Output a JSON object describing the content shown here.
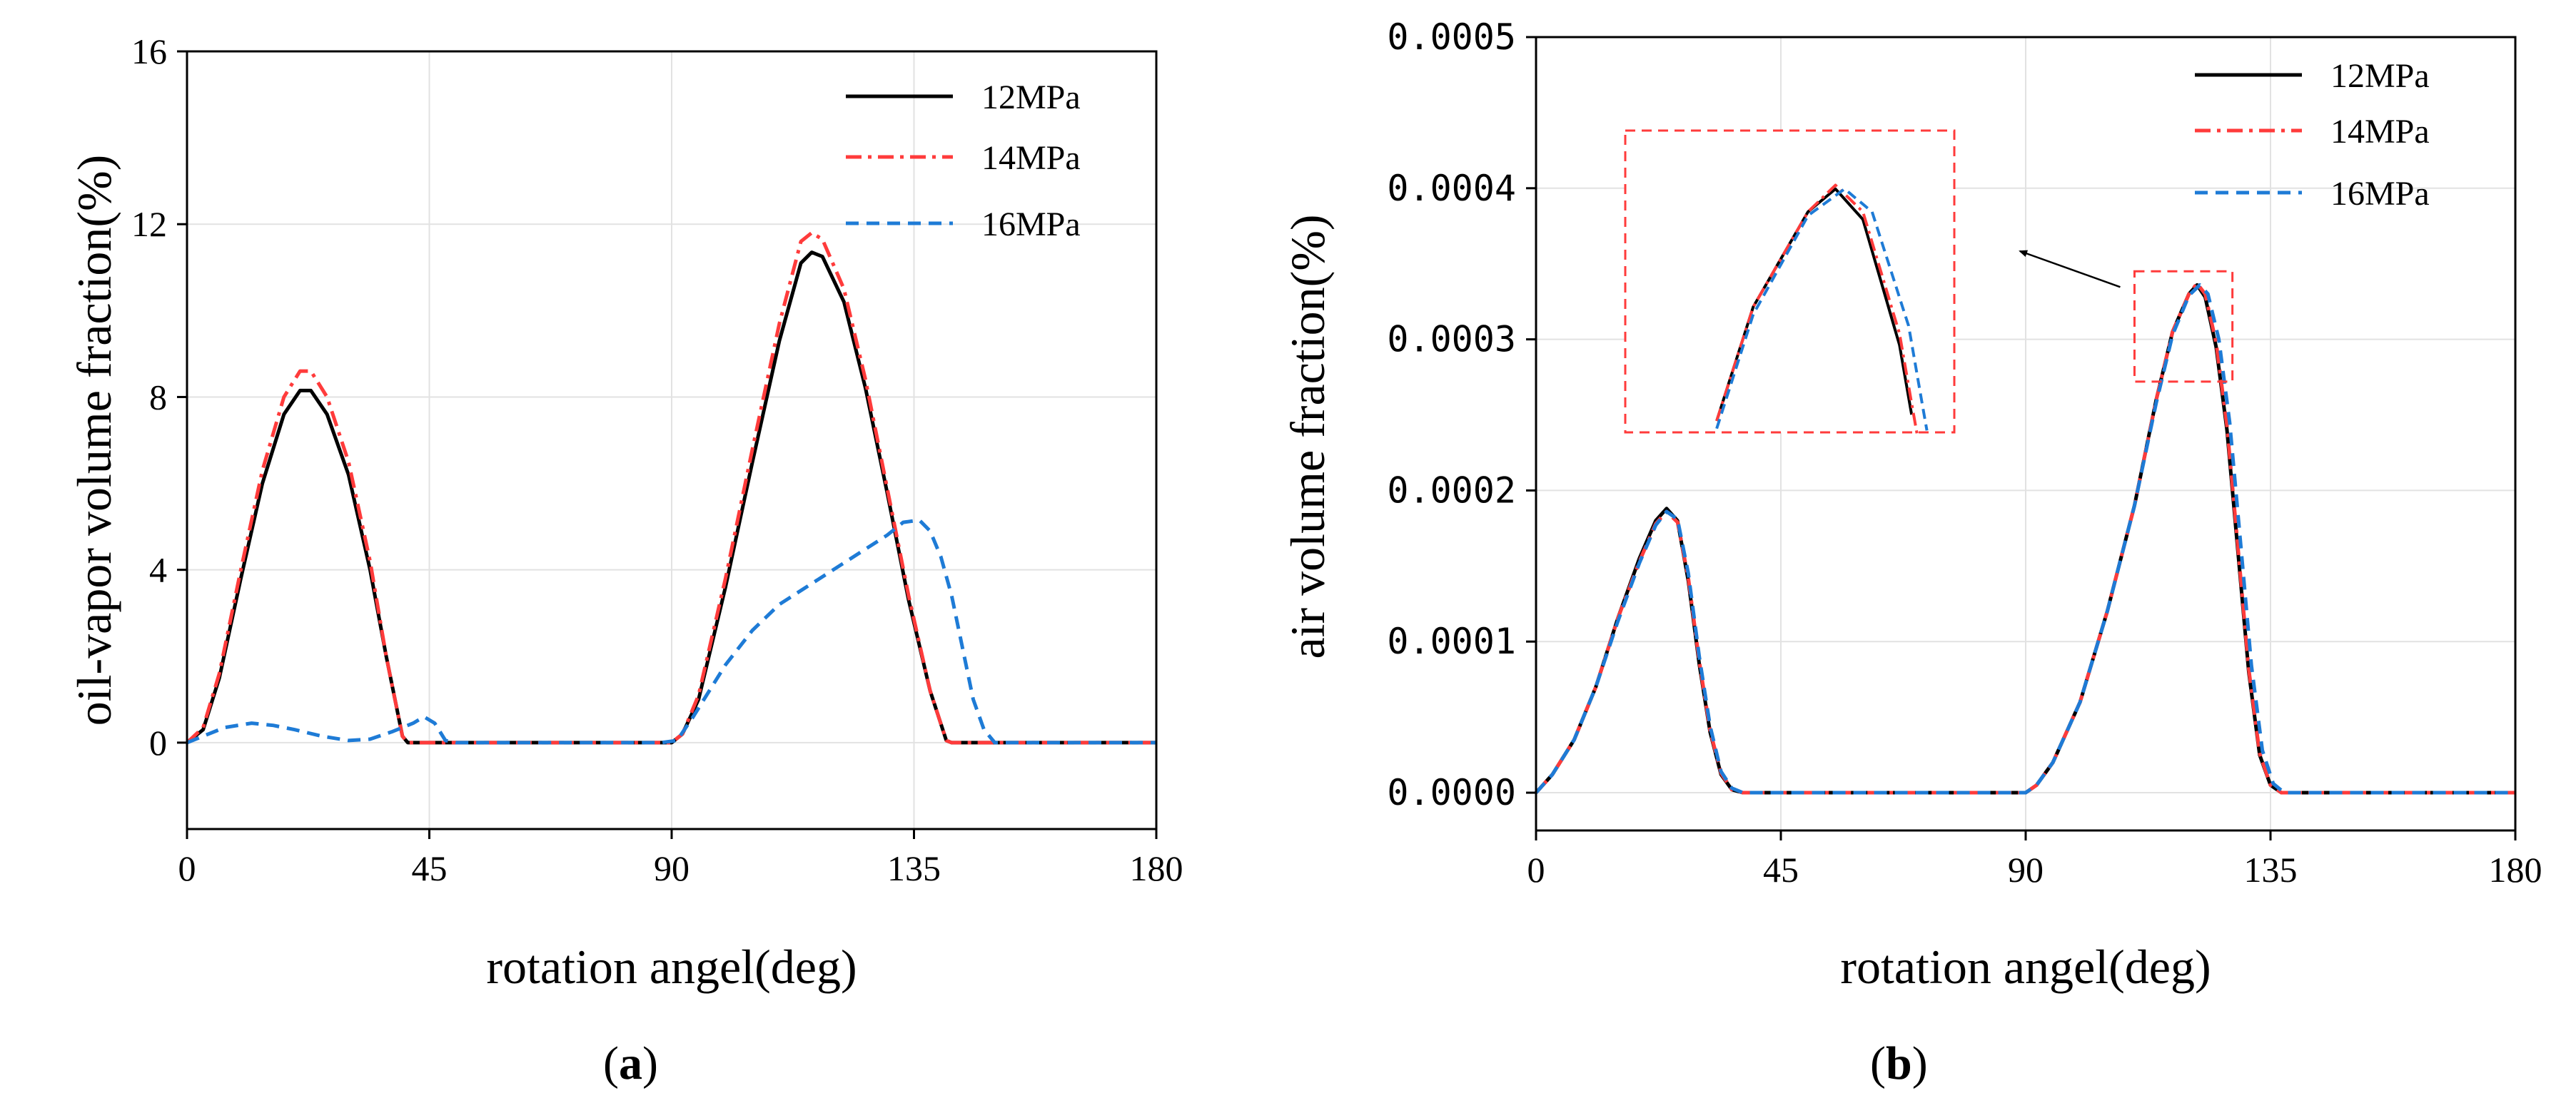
{
  "chart_data": [
    {
      "type": "line",
      "panel_label": {
        "open": "(",
        "letter": "a",
        "close": ")"
      },
      "xlabel": "rotation angel(deg)",
      "ylabel": "oil-vapor volume fraction(%)",
      "xlim": [
        0,
        180
      ],
      "ylim": [
        -2,
        16
      ],
      "xticks": [
        "0",
        "45",
        "90",
        "135",
        "180"
      ],
      "yticks": [
        "0",
        "4",
        "8",
        "12",
        "16"
      ],
      "grid": true,
      "legend_position": "top-right",
      "series": [
        {
          "name": "12MPa",
          "color": "#000000",
          "dash": "solid",
          "points": [
            [
              0,
              0
            ],
            [
              3,
              0.3
            ],
            [
              6,
              1.5
            ],
            [
              10,
              3.8
            ],
            [
              14,
              6.0
            ],
            [
              18,
              7.6
            ],
            [
              21,
              8.15
            ],
            [
              23,
              8.15
            ],
            [
              26,
              7.6
            ],
            [
              30,
              6.2
            ],
            [
              34,
              4.0
            ],
            [
              37,
              2.0
            ],
            [
              40,
              0.15
            ],
            [
              41,
              0
            ],
            [
              60,
              0
            ],
            [
              80,
              0
            ],
            [
              90,
              0
            ],
            [
              92,
              0.2
            ],
            [
              95,
              1.0
            ],
            [
              100,
              3.6
            ],
            [
              105,
              6.5
            ],
            [
              110,
              9.3
            ],
            [
              114,
              11.1
            ],
            [
              116,
              11.35
            ],
            [
              118,
              11.25
            ],
            [
              122,
              10.2
            ],
            [
              126,
              8.2
            ],
            [
              130,
              5.8
            ],
            [
              134,
              3.3
            ],
            [
              138,
              1.2
            ],
            [
              141,
              0.05
            ],
            [
              142,
              0
            ],
            [
              160,
              0
            ],
            [
              180,
              0
            ]
          ]
        },
        {
          "name": "14MPa",
          "color": "#ff3b3b",
          "dash": "dashdot",
          "points": [
            [
              0,
              0
            ],
            [
              3,
              0.35
            ],
            [
              6,
              1.6
            ],
            [
              10,
              4.0
            ],
            [
              14,
              6.3
            ],
            [
              18,
              8.0
            ],
            [
              21,
              8.6
            ],
            [
              23,
              8.6
            ],
            [
              26,
              8.0
            ],
            [
              30,
              6.5
            ],
            [
              34,
              4.2
            ],
            [
              37,
              2.0
            ],
            [
              40,
              0.15
            ],
            [
              41,
              0
            ],
            [
              60,
              0
            ],
            [
              80,
              0
            ],
            [
              90,
              0
            ],
            [
              92,
              0.2
            ],
            [
              95,
              1.1
            ],
            [
              100,
              3.8
            ],
            [
              105,
              6.8
            ],
            [
              110,
              9.7
            ],
            [
              114,
              11.6
            ],
            [
              116,
              11.8
            ],
            [
              118,
              11.65
            ],
            [
              122,
              10.5
            ],
            [
              126,
              8.4
            ],
            [
              130,
              5.9
            ],
            [
              134,
              3.4
            ],
            [
              138,
              1.2
            ],
            [
              141,
              0.05
            ],
            [
              142,
              0
            ],
            [
              160,
              0
            ],
            [
              180,
              0
            ]
          ]
        },
        {
          "name": "16MPa",
          "color": "#1e7bd6",
          "dash": "dashed",
          "points": [
            [
              0,
              0
            ],
            [
              3,
              0.15
            ],
            [
              7,
              0.35
            ],
            [
              12,
              0.45
            ],
            [
              16,
              0.4
            ],
            [
              20,
              0.3
            ],
            [
              25,
              0.15
            ],
            [
              30,
              0.05
            ],
            [
              34,
              0.08
            ],
            [
              38,
              0.25
            ],
            [
              42,
              0.45
            ],
            [
              44,
              0.6
            ],
            [
              46,
              0.45
            ],
            [
              48,
              0.05
            ],
            [
              50,
              0
            ],
            [
              70,
              0
            ],
            [
              88,
              0
            ],
            [
              91,
              0.05
            ],
            [
              94,
              0.6
            ],
            [
              97,
              1.2
            ],
            [
              100,
              1.8
            ],
            [
              105,
              2.6
            ],
            [
              110,
              3.2
            ],
            [
              115,
              3.6
            ],
            [
              120,
              4.0
            ],
            [
              125,
              4.4
            ],
            [
              130,
              4.8
            ],
            [
              133,
              5.1
            ],
            [
              136,
              5.15
            ],
            [
              138,
              4.9
            ],
            [
              140,
              4.3
            ],
            [
              142,
              3.4
            ],
            [
              144,
              2.2
            ],
            [
              146,
              1.0
            ],
            [
              148,
              0.3
            ],
            [
              150,
              0
            ],
            [
              160,
              0
            ],
            [
              180,
              0
            ]
          ]
        }
      ]
    },
    {
      "type": "line",
      "panel_label": {
        "open": "(",
        "letter": "b",
        "close": ")"
      },
      "xlabel": "rotation angel(deg)",
      "ylabel": "air volume fraction(%)",
      "xlim": [
        0,
        180
      ],
      "ylim": [
        -2.5e-05,
        0.0005
      ],
      "xticks": [
        "0",
        "45",
        "90",
        "135",
        "180"
      ],
      "yticks": [
        "0.0000",
        "0.0001",
        "0.0002",
        "0.0003",
        "0.0004",
        "0.0005"
      ],
      "grid": true,
      "legend_position": "top-right",
      "inset": {
        "source_xlim": [
          110,
          128
        ],
        "source_ylim": [
          0.000272,
          0.000345
        ],
        "arrow": true
      },
      "series": [
        {
          "name": "12MPa",
          "color": "#000000",
          "dash": "solid",
          "points": [
            [
              0,
              0
            ],
            [
              3,
              1.2e-05
            ],
            [
              7,
              3.5e-05
            ],
            [
              11,
              7e-05
            ],
            [
              15,
              0.000115
            ],
            [
              19,
              0.000155
            ],
            [
              22,
              0.00018
            ],
            [
              24,
              0.000188
            ],
            [
              26,
              0.00018
            ],
            [
              28,
              0.00014
            ],
            [
              30,
              8.5e-05
            ],
            [
              32,
              4e-05
            ],
            [
              34,
              1.2e-05
            ],
            [
              36,
              2e-06
            ],
            [
              38,
              0
            ],
            [
              50,
              0
            ],
            [
              70,
              0
            ],
            [
              90,
              0
            ],
            [
              92,
              5e-06
            ],
            [
              95,
              2e-05
            ],
            [
              100,
              6e-05
            ],
            [
              105,
              0.00012
            ],
            [
              110,
              0.00019
            ],
            [
              114,
              0.00026
            ],
            [
              117,
              0.000305
            ],
            [
              120,
              0.00033
            ],
            [
              121.5,
              0.000336
            ],
            [
              123,
              0.000328
            ],
            [
              125,
              0.000295
            ],
            [
              127,
              0.00024
            ],
            [
              129,
              0.00016
            ],
            [
              131,
              8e-05
            ],
            [
              133,
              2.5e-05
            ],
            [
              135,
              5e-06
            ],
            [
              137,
              0
            ],
            [
              150,
              0
            ],
            [
              180,
              0
            ]
          ]
        },
        {
          "name": "14MPa",
          "color": "#ff3b3b",
          "dash": "dashdot",
          "points": [
            [
              0,
              0
            ],
            [
              3,
              1.2e-05
            ],
            [
              7,
              3.5e-05
            ],
            [
              11,
              7e-05
            ],
            [
              15,
              0.000115
            ],
            [
              19,
              0.000153
            ],
            [
              22,
              0.000178
            ],
            [
              24,
              0.000186
            ],
            [
              26,
              0.000179
            ],
            [
              28,
              0.000142
            ],
            [
              30,
              8.7e-05
            ],
            [
              32,
              4.1e-05
            ],
            [
              34,
              1.3e-05
            ],
            [
              36,
              2e-06
            ],
            [
              38,
              0
            ],
            [
              50,
              0
            ],
            [
              70,
              0
            ],
            [
              90,
              0
            ],
            [
              92,
              5e-06
            ],
            [
              95,
              2e-05
            ],
            [
              100,
              6e-05
            ],
            [
              105,
              0.00012
            ],
            [
              110,
              0.00019
            ],
            [
              114,
              0.00026
            ],
            [
              117,
              0.000305
            ],
            [
              120,
              0.00033
            ],
            [
              121.5,
              0.000337
            ],
            [
              123,
              0.00033
            ],
            [
              125,
              0.000298
            ],
            [
              127,
              0.000243
            ],
            [
              129,
              0.000163
            ],
            [
              131,
              8.2e-05
            ],
            [
              133,
              2.6e-05
            ],
            [
              135,
              5e-06
            ],
            [
              137,
              0
            ],
            [
              150,
              0
            ],
            [
              180,
              0
            ]
          ]
        },
        {
          "name": "16MPa",
          "color": "#1e7bd6",
          "dash": "dashed",
          "points": [
            [
              0,
              0
            ],
            [
              3,
              1.2e-05
            ],
            [
              7,
              3.5e-05
            ],
            [
              11,
              7e-05
            ],
            [
              15,
              0.000113
            ],
            [
              19,
              0.000152
            ],
            [
              22,
              0.000177
            ],
            [
              24,
              0.000186
            ],
            [
              26,
              0.000181
            ],
            [
              28,
              0.000145
            ],
            [
              30,
              9e-05
            ],
            [
              32,
              4.4e-05
            ],
            [
              34,
              1.4e-05
            ],
            [
              36,
              3e-06
            ],
            [
              38,
              0
            ],
            [
              50,
              0
            ],
            [
              70,
              0
            ],
            [
              90,
              0
            ],
            [
              92,
              5e-06
            ],
            [
              95,
              2e-05
            ],
            [
              100,
              6e-05
            ],
            [
              105,
              0.00012
            ],
            [
              110,
              0.00019
            ],
            [
              114,
              0.000258
            ],
            [
              117,
              0.000303
            ],
            [
              120,
              0.000329
            ],
            [
              122,
              0.000336
            ],
            [
              123.5,
              0.00033
            ],
            [
              125.5,
              0.0003
            ],
            [
              127.5,
              0.000245
            ],
            [
              129.5,
              0.000165
            ],
            [
              131.5,
              8.4e-05
            ],
            [
              133.5,
              2.8e-05
            ],
            [
              135.5,
              6e-06
            ],
            [
              137.5,
              0
            ],
            [
              150,
              0
            ],
            [
              180,
              0
            ]
          ]
        }
      ]
    }
  ]
}
